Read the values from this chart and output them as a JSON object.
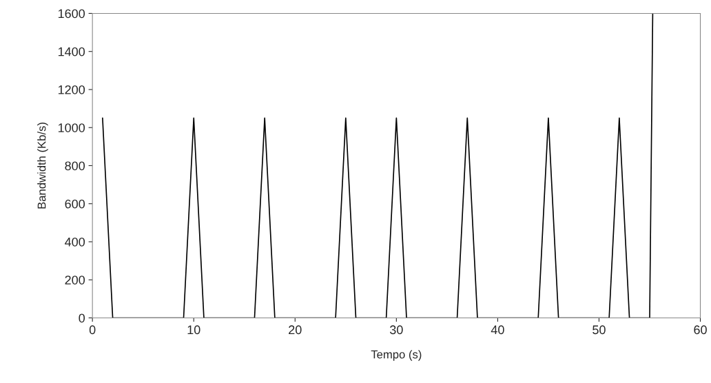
{
  "chart_data": {
    "type": "line",
    "xlabel": "Tempo (s)",
    "ylabel": "Bandwidth (Kb/s)",
    "x": [
      1,
      2,
      9,
      10,
      11,
      16,
      17,
      18,
      24,
      25,
      26,
      29,
      30,
      31,
      36,
      37,
      38,
      44,
      45,
      46,
      51,
      52,
      53,
      55,
      55.3
    ],
    "series": [
      {
        "color": "#000000",
        "values": [
          1050,
          0,
          0,
          1050,
          0,
          0,
          1050,
          0,
          0,
          1050,
          0,
          0,
          1050,
          0,
          0,
          1050,
          0,
          0,
          1050,
          0,
          0,
          1050,
          0,
          0,
          1600
        ]
      }
    ],
    "xlim": [
      0,
      60
    ],
    "xticks": [
      0,
      10,
      20,
      30,
      40,
      50,
      60
    ],
    "ylim": [
      0,
      1600
    ],
    "yticks": [
      0,
      200,
      400,
      600,
      800,
      1000,
      1200,
      1400,
      1600
    ],
    "grid": false,
    "legend": false,
    "marker": "none",
    "line_style": "solid"
  }
}
